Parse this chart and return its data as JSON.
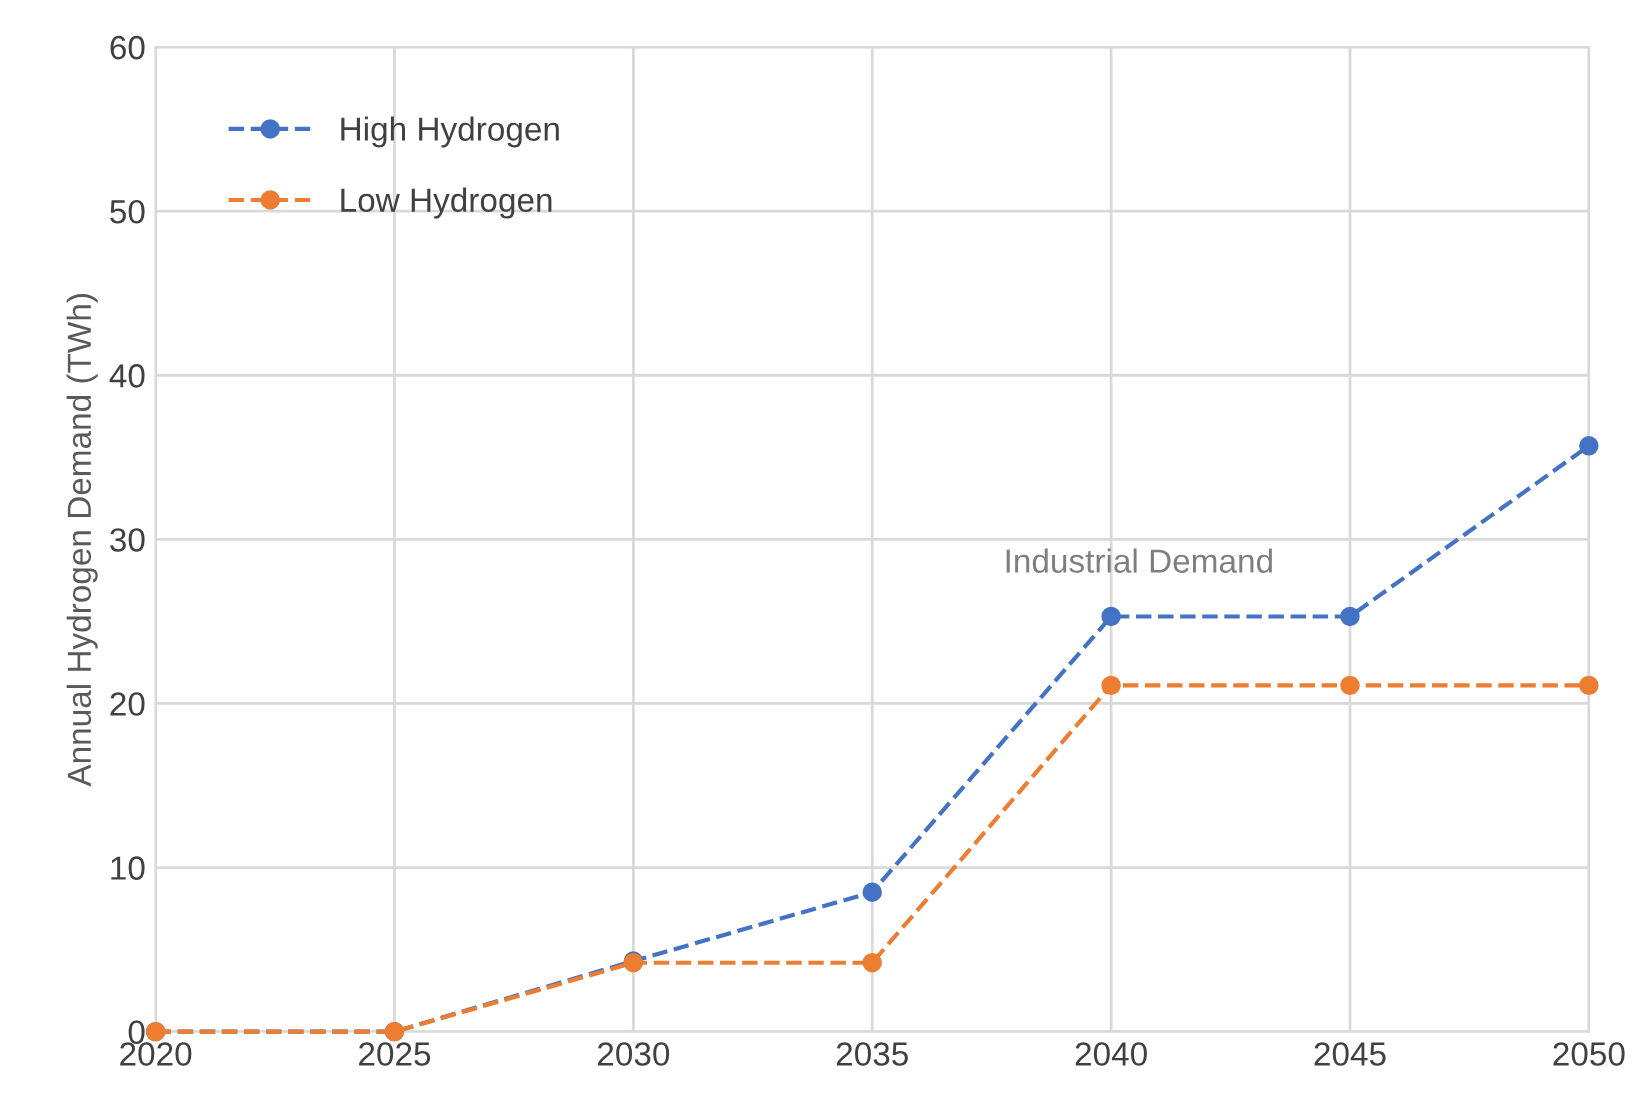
{
  "chart_data": {
    "type": "line",
    "ylabel": "Annual Hydrogen Demand (TWh)",
    "x": [
      2020,
      2025,
      2030,
      2035,
      2040,
      2045,
      2050
    ],
    "series": [
      {
        "name": "High Hydrogen",
        "color": "#4472c4",
        "values": [
          0,
          0,
          4.3,
          8.5,
          25.3,
          25.3,
          35.7
        ]
      },
      {
        "name": "Low Hydrogen",
        "color": "#ed7d31",
        "values": [
          0,
          0,
          4.2,
          4.2,
          21.1,
          21.1,
          21.1
        ]
      }
    ],
    "annotations": [
      "Industrial Demand"
    ],
    "xlim": [
      2020,
      2050
    ],
    "xticks": [
      2020,
      2025,
      2030,
      2035,
      2040,
      2045,
      2050
    ],
    "ylim": [
      0,
      60
    ],
    "yticks": [
      0,
      10,
      20,
      30,
      40,
      50,
      60
    ],
    "grid": true,
    "legend": "top left",
    "marker": "circle",
    "line_style": "dashed"
  }
}
